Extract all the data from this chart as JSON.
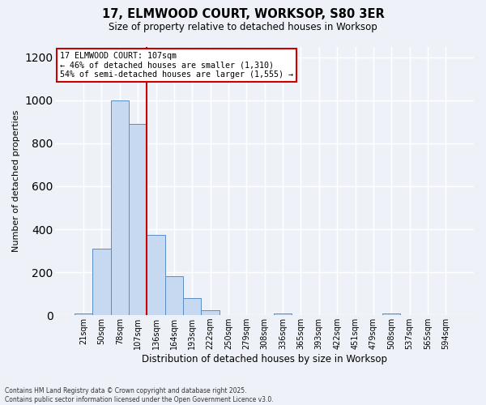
{
  "title_line1": "17, ELMWOOD COURT, WORKSOP, S80 3ER",
  "title_line2": "Size of property relative to detached houses in Worksop",
  "xlabel": "Distribution of detached houses by size in Worksop",
  "ylabel": "Number of detached properties",
  "categories": [
    "21sqm",
    "50sqm",
    "78sqm",
    "107sqm",
    "136sqm",
    "164sqm",
    "193sqm",
    "222sqm",
    "250sqm",
    "279sqm",
    "308sqm",
    "336sqm",
    "365sqm",
    "393sqm",
    "422sqm",
    "451sqm",
    "479sqm",
    "508sqm",
    "537sqm",
    "565sqm",
    "594sqm"
  ],
  "values": [
    10,
    310,
    1000,
    890,
    375,
    180,
    80,
    25,
    0,
    0,
    0,
    10,
    0,
    0,
    0,
    0,
    0,
    10,
    0,
    0,
    0
  ],
  "bar_color": "#c6d9f0",
  "bar_edge_color": "#5b8ec4",
  "vline_index": 3,
  "vline_color": "#cc0000",
  "annotation_title": "17 ELMWOOD COURT: 107sqm",
  "annotation_line1": "← 46% of detached houses are smaller (1,310)",
  "annotation_line2": "54% of semi-detached houses are larger (1,555) →",
  "annotation_box_color": "#cc0000",
  "ylim": [
    0,
    1250
  ],
  "yticks": [
    0,
    200,
    400,
    600,
    800,
    1000,
    1200
  ],
  "footnote_line1": "Contains HM Land Registry data © Crown copyright and database right 2025.",
  "footnote_line2": "Contains public sector information licensed under the Open Government Licence v3.0.",
  "bg_color": "#eef2f8",
  "grid_color": "#ffffff"
}
